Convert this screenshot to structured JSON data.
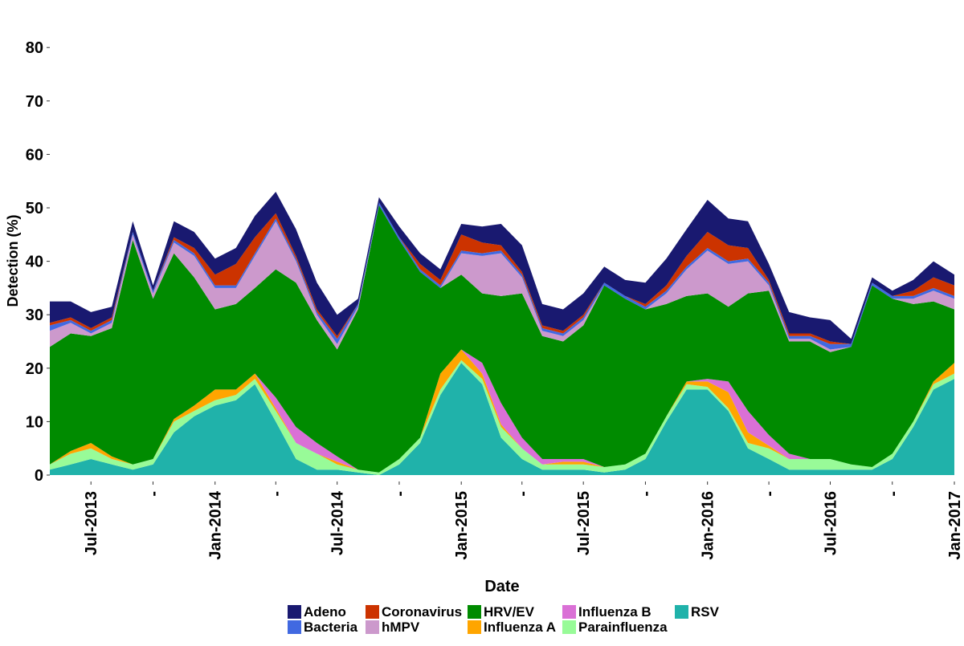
{
  "chart_data": {
    "type": "area",
    "stacked": true,
    "xlabel": "Date",
    "ylabel": "Detection (%)",
    "ylim": [
      0,
      85
    ],
    "yticks": [
      0,
      10,
      20,
      30,
      40,
      50,
      60,
      70,
      80
    ],
    "x_range": [
      "2013-05-01",
      "2017-01-01"
    ],
    "x_tick_labels": [
      {
        "date": "2013-07-01",
        "label": "Jul-2013"
      },
      {
        "date": "2013-10-01",
        "label": "-"
      },
      {
        "date": "2014-01-01",
        "label": "Jan-2014"
      },
      {
        "date": "2014-04-01",
        "label": "-"
      },
      {
        "date": "2014-07-01",
        "label": "Jul-2014"
      },
      {
        "date": "2014-10-01",
        "label": "-"
      },
      {
        "date": "2015-01-01",
        "label": "Jan-2015"
      },
      {
        "date": "2015-04-01",
        "label": "-"
      },
      {
        "date": "2015-07-01",
        "label": "Jul-2015"
      },
      {
        "date": "2015-10-01",
        "label": "-"
      },
      {
        "date": "2016-01-01",
        "label": "Jan-2016"
      },
      {
        "date": "2016-04-01",
        "label": "-"
      },
      {
        "date": "2016-07-01",
        "label": "Jul-2016"
      },
      {
        "date": "2016-10-01",
        "label": "-"
      },
      {
        "date": "2017-01-01",
        "label": "Jan-2017"
      }
    ],
    "legend_position": "bottom",
    "stack_order_bottom_to_top": [
      "RSV",
      "Parainfluenza",
      "Influenza A",
      "Influenza B",
      "HRV/EV",
      "hMPV",
      "Bacteria",
      "Coronavirus",
      "Adeno"
    ],
    "legend": [
      {
        "name": "Adeno",
        "color": "#191970"
      },
      {
        "name": "Coronavirus",
        "color": "#CC3300"
      },
      {
        "name": "HRV/EV",
        "color": "#008B00"
      },
      {
        "name": "Influenza B",
        "color": "#DA70D6"
      },
      {
        "name": "RSV",
        "color": "#20B2AA"
      },
      {
        "name": "Bacteria",
        "color": "#4169E1"
      },
      {
        "name": "hMPV",
        "color": "#CC99CC"
      },
      {
        "name": "Influenza A",
        "color": "#FFA500"
      },
      {
        "name": "Parainfluenza",
        "color": "#98FB98"
      }
    ],
    "x": [
      "2013-05-01",
      "2013-06-01",
      "2013-07-01",
      "2013-08-01",
      "2013-09-01",
      "2013-10-01",
      "2013-11-01",
      "2013-12-01",
      "2014-01-01",
      "2014-02-01",
      "2014-03-01",
      "2014-04-01",
      "2014-05-01",
      "2014-06-01",
      "2014-07-01",
      "2014-08-01",
      "2014-09-01",
      "2014-10-01",
      "2014-11-01",
      "2014-12-01",
      "2015-01-01",
      "2015-02-01",
      "2015-03-01",
      "2015-04-01",
      "2015-05-01",
      "2015-06-01",
      "2015-07-01",
      "2015-08-01",
      "2015-09-01",
      "2015-10-01",
      "2015-11-01",
      "2015-12-01",
      "2016-01-01",
      "2016-02-01",
      "2016-03-01",
      "2016-04-01",
      "2016-05-01",
      "2016-06-01",
      "2016-07-01",
      "2016-08-01",
      "2016-09-01",
      "2016-10-01",
      "2016-11-01",
      "2016-12-01",
      "2017-01-01"
    ],
    "series": [
      {
        "name": "RSV",
        "color": "#20B2AA",
        "values": [
          1,
          2,
          3,
          2,
          1,
          2,
          8,
          11,
          13,
          14,
          17,
          10,
          3,
          1,
          1,
          0.5,
          0,
          2,
          6,
          15,
          21,
          17,
          7,
          3,
          1,
          1,
          1,
          0.5,
          1,
          3,
          10,
          16,
          16,
          12,
          5,
          3,
          1,
          1,
          1,
          1,
          1,
          3,
          9,
          16,
          18
        ]
      },
      {
        "name": "Parainfluenza",
        "color": "#98FB98",
        "values": [
          1,
          2,
          2,
          1,
          1,
          1,
          2,
          1,
          1,
          1,
          1,
          2,
          3,
          3,
          1,
          0.5,
          0.5,
          1,
          1,
          1,
          0.5,
          1,
          2,
          2,
          1,
          1,
          1,
          1,
          1,
          1,
          1,
          1,
          0.5,
          0.5,
          1,
          2,
          2,
          2,
          2,
          1,
          0.5,
          1,
          1,
          1,
          1
        ]
      },
      {
        "name": "Influenza A",
        "color": "#FFA500",
        "values": [
          0,
          0.5,
          1,
          0.5,
          0,
          0,
          0.5,
          1,
          2,
          1,
          1,
          0.5,
          0,
          0,
          0.5,
          0,
          0,
          0,
          0,
          3,
          2,
          1,
          0.5,
          0,
          0,
          0.5,
          0.5,
          0,
          0,
          0,
          0,
          0.5,
          1,
          3,
          2,
          0.5,
          0,
          0,
          0,
          0,
          0,
          0,
          0,
          0.5,
          2
        ]
      },
      {
        "name": "Influenza B",
        "color": "#DA70D6",
        "values": [
          0,
          0,
          0,
          0,
          0,
          0,
          0,
          0,
          0,
          0,
          0,
          2,
          3,
          2,
          1,
          0,
          0,
          0,
          0,
          0,
          0,
          2,
          4,
          2,
          1,
          0.5,
          0.5,
          0,
          0,
          0,
          0,
          0,
          0.5,
          2,
          4,
          2,
          1,
          0,
          0,
          0,
          0,
          0,
          0,
          0,
          0
        ]
      },
      {
        "name": "HRV/EV",
        "color": "#008B00",
        "values": [
          22,
          22,
          20,
          24,
          42,
          30,
          31,
          24,
          15,
          16,
          16,
          24,
          27,
          23,
          20,
          30,
          50,
          41,
          31,
          16,
          14,
          13,
          20,
          27,
          23,
          22,
          25,
          34,
          31,
          27,
          21,
          16,
          16,
          14,
          22,
          27,
          21,
          22,
          20,
          22,
          34,
          29,
          22,
          15,
          10
        ]
      },
      {
        "name": "hMPV",
        "color": "#CC99CC",
        "values": [
          3,
          2,
          0.5,
          1,
          1,
          1,
          2,
          4,
          4,
          3,
          6,
          9,
          4,
          1,
          1,
          0.5,
          0,
          0,
          0,
          0,
          4,
          7,
          8,
          3,
          1,
          1,
          1,
          0,
          0,
          0,
          2,
          5,
          8,
          8,
          6,
          1,
          0.5,
          0.5,
          0.5,
          0,
          0,
          0,
          1,
          2,
          2
        ]
      },
      {
        "name": "Bacteria",
        "color": "#4169E1",
        "values": [
          1,
          0.5,
          0.5,
          0.5,
          0.5,
          0.5,
          0.5,
          0.5,
          0.5,
          0.5,
          0.5,
          0.5,
          0.5,
          0.5,
          1,
          0.5,
          0.5,
          0.5,
          0.5,
          0.5,
          0.5,
          0.5,
          0.5,
          0.5,
          0.5,
          0.5,
          0.5,
          0.5,
          0.5,
          0.5,
          0.5,
          0.5,
          0.5,
          0.5,
          0.5,
          0.5,
          0.5,
          0.5,
          1,
          0.5,
          0.5,
          0.5,
          0.5,
          0.5,
          0.5
        ]
      },
      {
        "name": "Coronavirus",
        "color": "#CC3300",
        "values": [
          0.5,
          0.5,
          0.5,
          0.5,
          0,
          0,
          0.5,
          1,
          2,
          4,
          3,
          1,
          0.5,
          0.5,
          0.5,
          0,
          0,
          0,
          1,
          1,
          3,
          2,
          1,
          0.5,
          0.5,
          0.5,
          0.5,
          0,
          0,
          0.5,
          1,
          2,
          3,
          3,
          2,
          0.5,
          0.5,
          0.5,
          0.5,
          0,
          0,
          0,
          1,
          2,
          2
        ]
      },
      {
        "name": "Adeno",
        "color": "#191970",
        "values": [
          4,
          3,
          3,
          2,
          2,
          1,
          3,
          3,
          3,
          3,
          4,
          4,
          5,
          5,
          4,
          1,
          1,
          2,
          2,
          2,
          2,
          3,
          4,
          5,
          4,
          4,
          4,
          3,
          3,
          4,
          5,
          5,
          6,
          5,
          5,
          3,
          4,
          3,
          4,
          1,
          1,
          1,
          2,
          3,
          2
        ]
      }
    ]
  }
}
